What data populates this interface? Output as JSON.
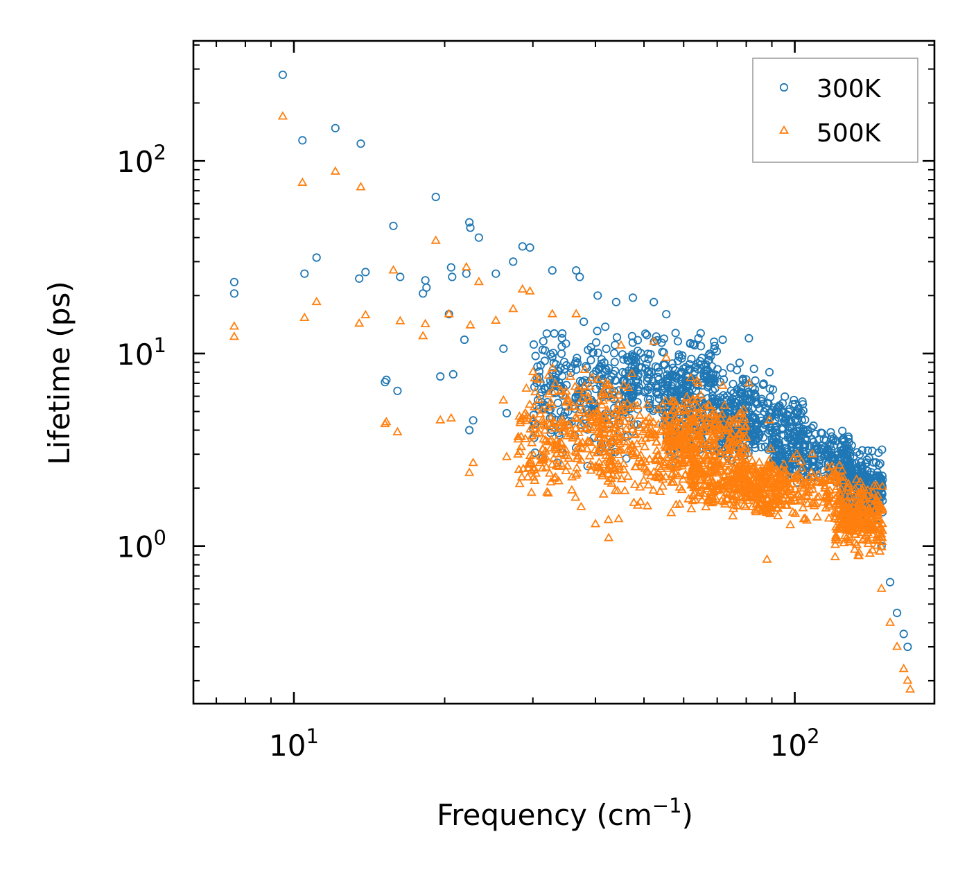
{
  "chart_data": {
    "type": "scatter",
    "title": "",
    "xlabel": "Frequency (cm",
    "xlabel_sup": "−1",
    "xlabel_end": ")",
    "ylabel": "Lifetime (ps)",
    "xscale": "log",
    "yscale": "log",
    "xlim": [
      6.3,
      190
    ],
    "ylim": [
      0.152,
      420
    ],
    "x_major_ticks": [
      {
        "value": 10,
        "base": "10",
        "exp": "1"
      },
      {
        "value": 100,
        "base": "10",
        "exp": "2"
      }
    ],
    "y_major_ticks": [
      {
        "value": 1,
        "base": "10",
        "exp": "0"
      },
      {
        "value": 10,
        "base": "10",
        "exp": "1"
      },
      {
        "value": 100,
        "base": "10",
        "exp": "2"
      }
    ],
    "legend_position": "top-right",
    "series": [
      {
        "name": "300K",
        "marker": "circle",
        "color": "#1f77b4",
        "anchor_points": [
          [
            7.6,
            23.5
          ],
          [
            7.6,
            20.5
          ],
          [
            9.5,
            280
          ],
          [
            10.4,
            128
          ],
          [
            10.5,
            26
          ],
          [
            11.1,
            31.5
          ],
          [
            12.1,
            148
          ],
          [
            13.5,
            24.5
          ],
          [
            13.6,
            123
          ],
          [
            13.9,
            26.5
          ],
          [
            15.2,
            7.1
          ],
          [
            15.3,
            7.3
          ],
          [
            15.8,
            46
          ],
          [
            16.1,
            6.4
          ],
          [
            16.3,
            25
          ],
          [
            18.1,
            20.5
          ],
          [
            18.3,
            24
          ],
          [
            18.4,
            22
          ],
          [
            19.2,
            65
          ],
          [
            19.6,
            7.6
          ],
          [
            20.4,
            16
          ],
          [
            20.6,
            28
          ],
          [
            20.7,
            25
          ],
          [
            20.8,
            7.8
          ],
          [
            21.9,
            11.8
          ],
          [
            22.1,
            26
          ],
          [
            22.4,
            4.0
          ],
          [
            22.4,
            48
          ],
          [
            22.5,
            45
          ],
          [
            22.8,
            4.5
          ],
          [
            23.4,
            40
          ],
          [
            25.3,
            26
          ],
          [
            26.2,
            10.6
          ],
          [
            26.6,
            4.9
          ],
          [
            27.4,
            30
          ],
          [
            28.6,
            36
          ],
          [
            29.6,
            35.5
          ],
          [
            30.1,
            4.8
          ],
          [
            31.8,
            5.3
          ],
          [
            32.8,
            27
          ],
          [
            34.1,
            5.0
          ],
          [
            36.6,
            27
          ],
          [
            37.2,
            25
          ],
          [
            40.4,
            20
          ],
          [
            44,
            18.5
          ],
          [
            47.5,
            19.5
          ],
          [
            52.3,
            18.5
          ],
          [
            55.4,
            16
          ],
          [
            64.2,
            12
          ],
          [
            71.8,
            11.8
          ],
          [
            81,
            12
          ],
          [
            89,
            8
          ],
          [
            101,
            5
          ],
          [
            108,
            4.1
          ],
          [
            118,
            3.9
          ],
          [
            128,
            3.7
          ],
          [
            135,
            2.6
          ],
          [
            143,
            1.6
          ],
          [
            149,
            1.0
          ],
          [
            155,
            0.65
          ],
          [
            160,
            0.45
          ],
          [
            165,
            0.35
          ],
          [
            168,
            0.3
          ]
        ],
        "clouds": [
          {
            "x": [
              30,
              48
            ],
            "y": [
              2.2,
              18
            ]
          },
          {
            "x": [
              45,
              70
            ],
            "y": [
              3.5,
              15
            ]
          },
          {
            "x": [
              55,
              85
            ],
            "y": [
              2.0,
              11
            ]
          },
          {
            "x": [
              70,
              105
            ],
            "y": [
              2.5,
              7.5
            ]
          },
          {
            "x": [
              90,
              130
            ],
            "y": [
              1.8,
              4.8
            ]
          },
          {
            "x": [
              125,
              150
            ],
            "y": [
              1.2,
              3.5
            ]
          }
        ]
      },
      {
        "name": "500K",
        "marker": "triangle",
        "color": "#ff7f0e",
        "anchor_points": [
          [
            7.6,
            13.8
          ],
          [
            7.6,
            12.2
          ],
          [
            9.5,
            170
          ],
          [
            10.4,
            77
          ],
          [
            10.5,
            15.3
          ],
          [
            11.1,
            18.5
          ],
          [
            12.1,
            88
          ],
          [
            13.5,
            14.3
          ],
          [
            13.6,
            73
          ],
          [
            13.9,
            15.8
          ],
          [
            15.2,
            4.3
          ],
          [
            15.3,
            4.4
          ],
          [
            15.8,
            27
          ],
          [
            16.1,
            3.9
          ],
          [
            16.3,
            14.7
          ],
          [
            18.1,
            12.3
          ],
          [
            18.3,
            14.2
          ],
          [
            19.2,
            38.5
          ],
          [
            19.6,
            4.5
          ],
          [
            20.4,
            16
          ],
          [
            20.6,
            4.6
          ],
          [
            22.1,
            28
          ],
          [
            22.4,
            2.4
          ],
          [
            22.5,
            14
          ],
          [
            22.8,
            2.7
          ],
          [
            23.4,
            23.5
          ],
          [
            25.3,
            14.8
          ],
          [
            26.2,
            5.7
          ],
          [
            26.6,
            2.9
          ],
          [
            27.4,
            17
          ],
          [
            28.6,
            21.5
          ],
          [
            29.6,
            21
          ],
          [
            31.8,
            3.1
          ],
          [
            32.8,
            16
          ],
          [
            34.1,
            3.0
          ],
          [
            36.6,
            16
          ],
          [
            40,
            1.3
          ],
          [
            42.5,
            1.1
          ],
          [
            45,
            11
          ],
          [
            52.3,
            11.5
          ],
          [
            55.4,
            9.5
          ],
          [
            64.2,
            7
          ],
          [
            71.8,
            6.8
          ],
          [
            81,
            7
          ],
          [
            89,
            4.5
          ],
          [
            101,
            3
          ],
          [
            108,
            2.4
          ],
          [
            118,
            2.2
          ],
          [
            128,
            2.1
          ],
          [
            135,
            1.5
          ],
          [
            143,
            0.95
          ],
          [
            149,
            0.6
          ],
          [
            155,
            0.4
          ],
          [
            160,
            0.3
          ],
          [
            165,
            0.23
          ],
          [
            168,
            0.2
          ],
          [
            170,
            0.18
          ],
          [
            88,
            0.85
          ]
        ],
        "clouds": [
          {
            "x": [
              28,
              45
            ],
            "y": [
              1.4,
              11
            ]
          },
          {
            "x": [
              40,
              65
            ],
            "y": [
              1.1,
              9
            ]
          },
          {
            "x": [
              55,
              80
            ],
            "y": [
              1.8,
              7
            ]
          },
          {
            "x": [
              62,
              95
            ],
            "y": [
              1.3,
              3.5
            ]
          },
          {
            "x": [
              75,
              125
            ],
            "y": [
              1.2,
              3.2
            ]
          },
          {
            "x": [
              120,
              150
            ],
            "y": [
              0.8,
              2.5
            ]
          }
        ]
      }
    ]
  }
}
